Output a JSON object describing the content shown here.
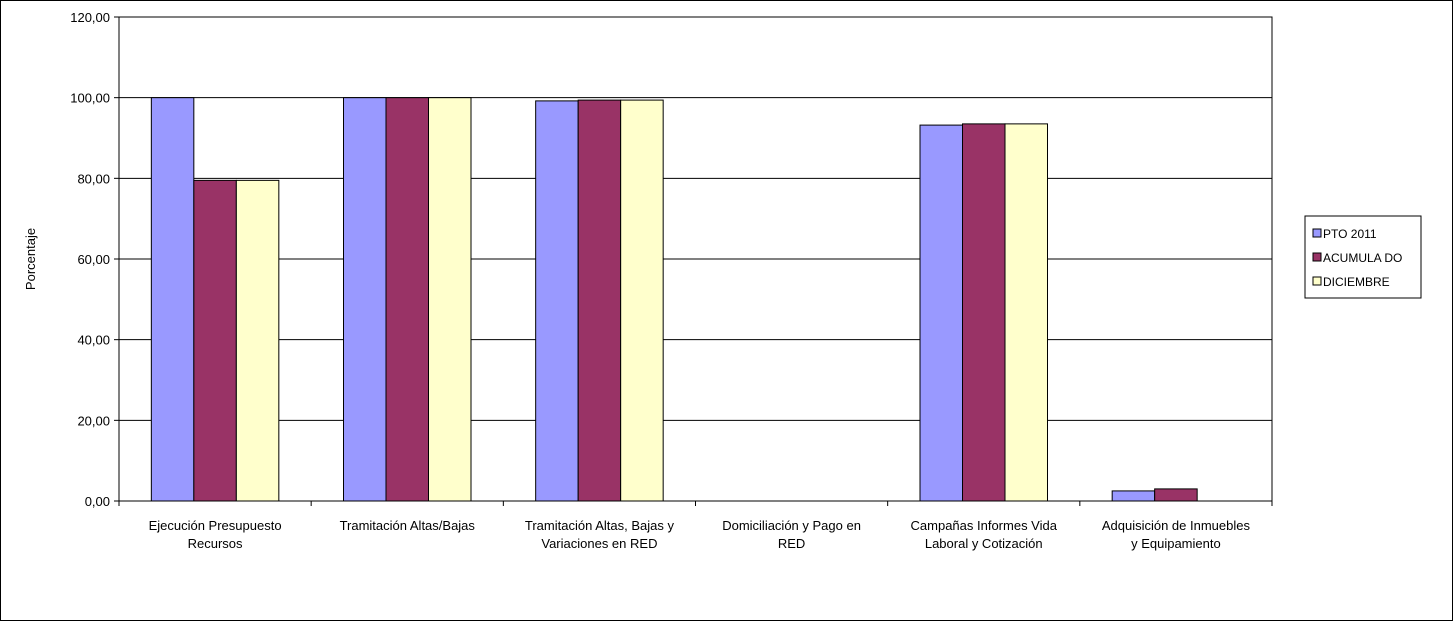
{
  "chart_data": {
    "type": "bar",
    "title": "",
    "xlabel": "",
    "ylabel": "Porcentaje",
    "ylim": [
      0,
      120
    ],
    "yticks": [
      "0,00",
      "20,00",
      "40,00",
      "60,00",
      "80,00",
      "100,00",
      "120,00"
    ],
    "grid": true,
    "legend_position": "right",
    "categories": [
      [
        "Ejecución Presupuesto",
        "Recursos"
      ],
      [
        "Tramitación Altas/Bajas"
      ],
      [
        "Tramitación Altas, Bajas y",
        "Variaciones en RED"
      ],
      [
        "Domiciliación y Pago en",
        "RED"
      ],
      [
        "Campañas Informes Vida",
        "Laboral y Cotización"
      ],
      [
        "Adquisición de Inmuebles",
        "y Equipamiento"
      ]
    ],
    "series": [
      {
        "name": "PTO  2011",
        "color": "#9999ff",
        "values": [
          100,
          100,
          99.2,
          0,
          93.2,
          2.5
        ]
      },
      {
        "name": "ACUMULA DO",
        "color": "#993366",
        "values": [
          79.5,
          100,
          99.4,
          0,
          93.5,
          3.0
        ]
      },
      {
        "name": "DICIEMBRE",
        "color": "#ffffcc",
        "values": [
          79.5,
          100,
          99.4,
          0,
          93.5,
          0
        ]
      }
    ]
  }
}
